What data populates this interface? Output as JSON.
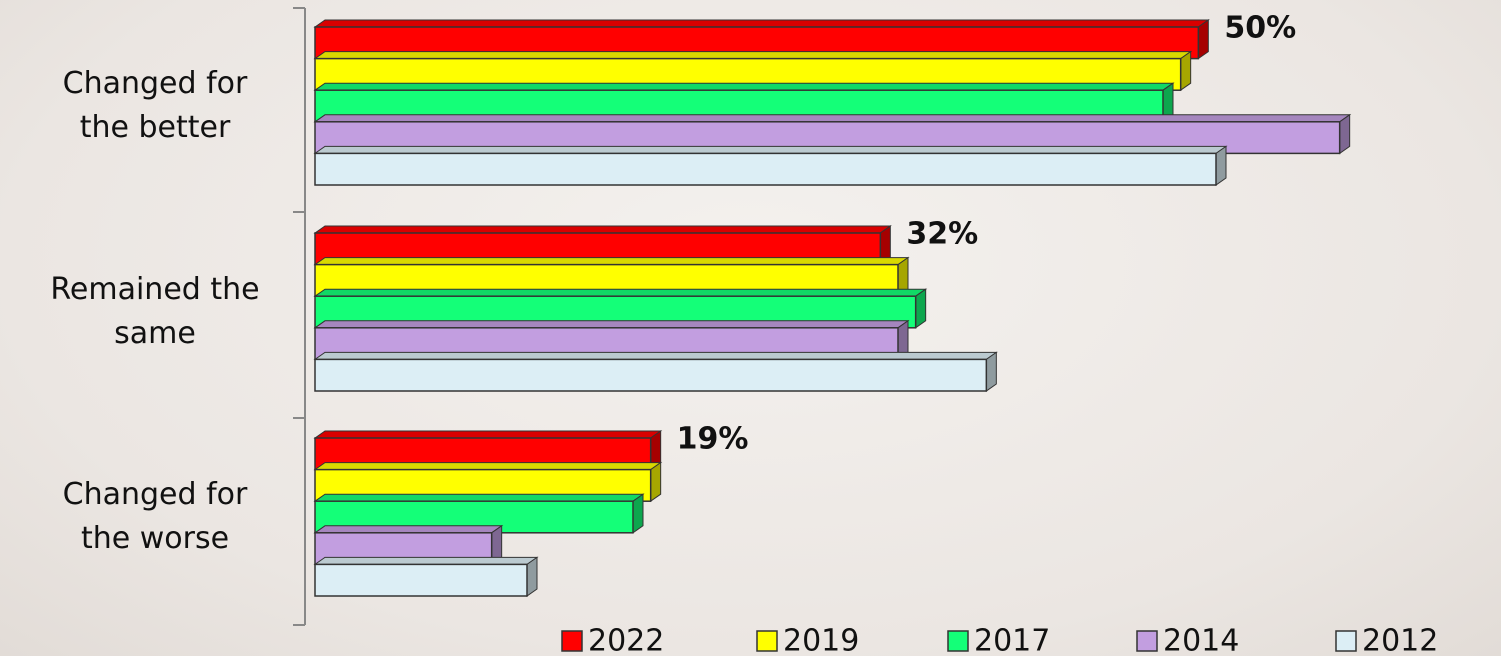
{
  "chart_data": {
    "type": "bar",
    "orientation": "horizontal",
    "categories": [
      "Changed for the better",
      "Remained the same",
      "Changed for the worse"
    ],
    "series": [
      {
        "name": "2022",
        "color": "#ff0000",
        "values": [
          50,
          32,
          19
        ],
        "value_labels": [
          "50%",
          "32%",
          "19%"
        ]
      },
      {
        "name": "2019",
        "color": "#ffff00",
        "values": [
          49,
          33,
          19
        ]
      },
      {
        "name": "2017",
        "color": "#14ff78",
        "values": [
          48,
          34,
          18
        ]
      },
      {
        "name": "2014",
        "color": "#c29ee0",
        "values": [
          58,
          33,
          10
        ]
      },
      {
        "name": "2012",
        "color": "#dceef5",
        "values": [
          51,
          38,
          12
        ]
      }
    ],
    "xlim": [
      0,
      60
    ],
    "legend": "bottom"
  }
}
